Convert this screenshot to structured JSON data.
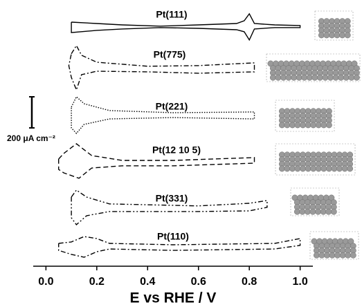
{
  "chart_data": {
    "type": "line",
    "xlabel": "E vs RHE / V",
    "xlim": [
      -0.05,
      1.05
    ],
    "ylim": [
      0,
      1640
    ],
    "xticks": [
      {
        "value": 0,
        "label": "0.0"
      },
      0.2,
      0.4,
      0.6,
      0.8,
      {
        "value": 1,
        "label": "1.0"
      }
    ],
    "scale_bar": {
      "value": 200,
      "label": "200 μA cm⁻²"
    },
    "series": [
      {
        "name": "Pt(111)",
        "color": "#000000",
        "linestyle": "solid",
        "x": [
          0.1,
          0.2,
          0.3,
          0.45,
          0.6,
          0.75,
          0.78,
          0.8,
          0.82,
          0.9,
          1.0,
          1.0,
          0.9,
          0.82,
          0.8,
          0.78,
          0.75,
          0.6,
          0.45,
          0.3,
          0.2,
          0.1,
          0.1
        ],
        "values": [
          1571,
          1562,
          1553,
          1545,
          1553,
          1562,
          1580,
          1625,
          1562,
          1553,
          1549,
          1536,
          1536,
          1527,
          1456,
          1509,
          1522,
          1531,
          1536,
          1527,
          1518,
          1504,
          1571
        ]
      },
      {
        "name": "Pt(775)",
        "color": "#000000",
        "linestyle": "dashdot",
        "x": [
          0.1,
          0.12,
          0.14,
          0.2,
          0.4,
          0.6,
          0.82,
          0.82,
          0.6,
          0.4,
          0.2,
          0.14,
          0.12,
          0.1,
          0.09,
          0.1
        ],
        "values": [
          1367,
          1420,
          1358,
          1313,
          1287,
          1291,
          1309,
          1251,
          1242,
          1251,
          1255,
          1233,
          1135,
          1215,
          1291,
          1367
        ]
      },
      {
        "name": "Pt(221)",
        "color": "#000000",
        "linestyle": "dotted",
        "x": [
          0.1,
          0.12,
          0.15,
          0.25,
          0.5,
          0.82,
          0.82,
          0.5,
          0.25,
          0.15,
          0.12,
          0.1,
          0.1
        ],
        "values": [
          1024,
          1091,
          1046,
          1002,
          988,
          993,
          948,
          957,
          948,
          913,
          855,
          890,
          1024
        ]
      },
      {
        "name": "Pt(12 10 5)",
        "color": "#000000",
        "linestyle": "dashed",
        "x": [
          0.05,
          0.07,
          0.12,
          0.18,
          0.3,
          0.5,
          0.82,
          0.82,
          0.5,
          0.3,
          0.18,
          0.13,
          0.07,
          0.05,
          0.05
        ],
        "values": [
          690,
          726,
          788,
          712,
          681,
          681,
          699,
          663,
          646,
          646,
          632,
          566,
          601,
          623,
          690
        ]
      },
      {
        "name": "Pt(331)",
        "color": "#000000",
        "linestyle": "dashdotdot",
        "x": [
          0.1,
          0.12,
          0.16,
          0.25,
          0.6,
          0.8,
          0.87,
          0.87,
          0.8,
          0.6,
          0.25,
          0.16,
          0.12,
          0.1,
          0.1
        ],
        "values": [
          445,
          490,
          445,
          401,
          388,
          405,
          423,
          379,
          356,
          352,
          352,
          325,
          267,
          312,
          445
        ]
      },
      {
        "name": "Pt(110)",
        "color": "#000000",
        "linestyle": "dashdot",
        "x": [
          0.05,
          0.1,
          0.15,
          0.2,
          0.25,
          0.5,
          0.9,
          1.0,
          1.0,
          0.9,
          0.5,
          0.25,
          0.2,
          0.15,
          0.1,
          0.05,
          0.05
        ],
        "values": [
          147,
          156,
          191,
          178,
          147,
          138,
          147,
          178,
          134,
          111,
          102,
          111,
          93,
          58,
          76,
          102,
          147
        ]
      }
    ]
  }
}
